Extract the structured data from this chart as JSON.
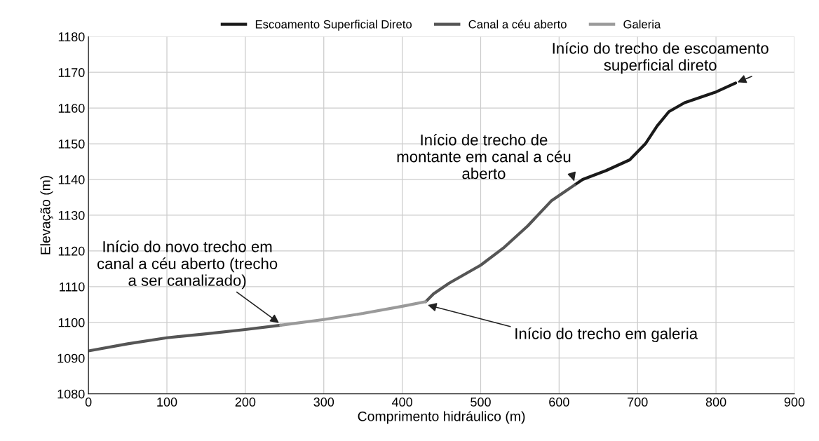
{
  "chart_data": {
    "type": "line",
    "xlabel": "Comprimento hidráulico (m)",
    "ylabel": "Elevação (m)",
    "xlim": [
      0,
      900
    ],
    "xticks": [
      0,
      100,
      200,
      300,
      400,
      500,
      600,
      700,
      800,
      900
    ],
    "ylim": [
      1080,
      1180
    ],
    "yticks": [
      1080,
      1090,
      1100,
      1110,
      1120,
      1130,
      1140,
      1150,
      1160,
      1170,
      1180
    ],
    "grid": true,
    "legend": "top",
    "marker": "none",
    "line_style": "solid",
    "series": [
      {
        "name": "Escoamento Superficial Direto",
        "color": "#1a1a1a",
        "x": [
          620,
          630,
          660,
          690,
          710,
          725,
          740,
          760,
          800,
          825
        ],
        "values": [
          1138.5,
          1140,
          1142.5,
          1145.5,
          1150,
          1155,
          1159,
          1161.5,
          1164.5,
          1167
        ]
      },
      {
        "name": "Canal a céu aberto",
        "color": "#555555",
        "x": [
          0,
          50,
          100,
          150,
          200,
          245,
          337,
          430,
          440,
          460,
          500,
          530,
          560,
          590,
          610,
          620
        ],
        "values": [
          1092,
          1094,
          1095.7,
          1096.8,
          1098,
          1099.2,
          null,
          1105.8,
          1108,
          1111,
          1116,
          1121,
          1127,
          1134,
          1137,
          1138.5
        ]
      },
      {
        "name": "Galeria",
        "color": "#9a9a9a",
        "x": [
          245,
          300,
          350,
          400,
          430
        ],
        "values": [
          1099.2,
          1100.8,
          1102.5,
          1104.5,
          1105.8
        ]
      }
    ],
    "annotations": [
      {
        "text": "Início do trecho de escoamento\nsuperficial direto",
        "x": 825,
        "y": 1167
      },
      {
        "text": "Início de trecho de\nmontante em canal a céu\naberto",
        "x": 620,
        "y": 1139
      },
      {
        "text": "Início do novo trecho em\ncanal a céu aberto (trecho\na ser canalizado)",
        "x": 245,
        "y": 1099.5
      },
      {
        "text": "Início do trecho em galeria",
        "x": 430,
        "y": 1105
      }
    ]
  }
}
